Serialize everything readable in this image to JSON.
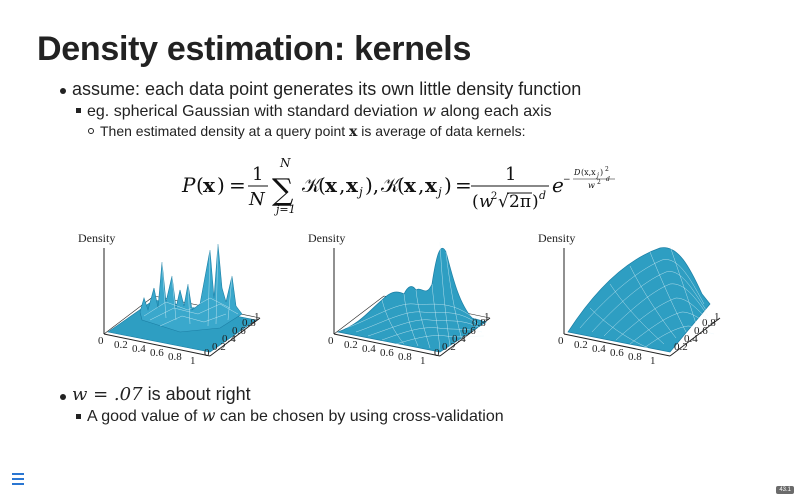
{
  "slide": {
    "title": "Density estimation: kernels",
    "bullet1": "assume: each data point generates its own little density function",
    "sub1_before": "eg. spherical Gaussian with standard deviation ",
    "sub1_var": "w",
    "sub1_after": " along each axis",
    "sub2_before": "Then estimated density at a query point ",
    "sub2_var": "x",
    "sub2_after": " is average of data kernels:",
    "bullet2_math": "w = .07",
    "bullet2_text": " is about right",
    "sub3_before": "A good value of ",
    "sub3_var": "w",
    "sub3_after": " can be chosen by using cross-validation",
    "page_number": "43.1"
  },
  "formula": {
    "P": "P",
    "x": "x",
    "equals": "=",
    "one": "1",
    "N": "N",
    "sum_sup": "N",
    "sum_sub": "j=1",
    "K": "𝒦",
    "xj": "x",
    "j": "j",
    "d": "d",
    "e": "e",
    "w2": "w",
    "two": "2",
    "pi": "2π",
    "D": "D",
    "w": "w"
  },
  "plots": [
    {
      "ylabel": "Density",
      "x_ticks": [
        "0",
        "0.2",
        "0.4",
        "0.6",
        "0.8",
        "1"
      ],
      "y_ticks": [
        "0",
        "0.2",
        "0.4",
        "0.6",
        "0.8",
        "1"
      ]
    },
    {
      "ylabel": "Density",
      "x_ticks": [
        "0",
        "0.2",
        "0.4",
        "0.6",
        "0.8",
        "1"
      ],
      "y_ticks": [
        "0",
        "0.2",
        "0.4",
        "0.6",
        "0.8",
        "1"
      ]
    },
    {
      "ylabel": "Density",
      "x_ticks": [
        "0",
        "0.2",
        "0.4",
        "0.6",
        "0.8",
        "1"
      ],
      "y_ticks": [
        "0.2",
        "0.4",
        "0.6",
        "0.8",
        "1"
      ]
    }
  ],
  "colors": {
    "surface": "#2e9ec2",
    "surface_line": "#1c7fa5"
  }
}
